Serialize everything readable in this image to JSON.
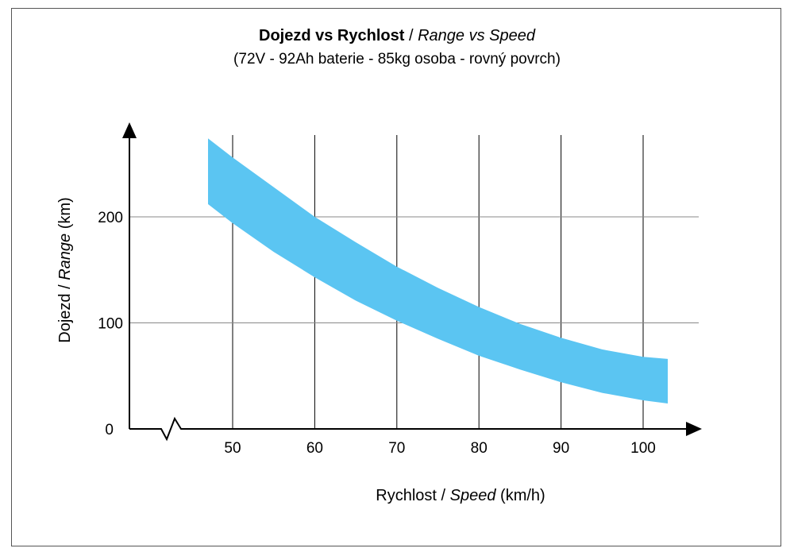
{
  "chart_data": {
    "type": "area",
    "title_bold": "Dojezd vs Rychlost",
    "title_sep": " / ",
    "title_italic": "Range vs Speed",
    "subtitle": "(72V - 92Ah baterie - 85kg osoba - rovný povrch)",
    "xlabel_main": "Rychlost",
    "xlabel_sep": " / ",
    "xlabel_italic": "Speed",
    "xlabel_unit": " (km/h)",
    "ylabel_main": "Dojezd",
    "ylabel_sep": " / ",
    "ylabel_italic": "Range",
    "ylabel_unit": " (km)",
    "x_ticks": [
      "50",
      "60",
      "70",
      "80",
      "90",
      "100"
    ],
    "y_ticks": [
      "0",
      "100",
      "200"
    ],
    "xlim": [
      37,
      107
    ],
    "ylim": [
      0,
      290
    ],
    "band_color": "#5bc5f2",
    "series": [
      {
        "name": "upper",
        "x": [
          47,
          50,
          55,
          60,
          65,
          70,
          75,
          80,
          85,
          90,
          95,
          100,
          103
        ],
        "y": [
          274,
          256,
          228,
          200,
          176,
          153,
          133,
          115,
          99,
          86,
          75,
          68,
          66
        ]
      },
      {
        "name": "lower",
        "x": [
          47,
          50,
          55,
          60,
          65,
          70,
          75,
          80,
          85,
          90,
          95,
          100,
          103
        ],
        "y": [
          212,
          194,
          167,
          143,
          121,
          102,
          85,
          69,
          56,
          44,
          34,
          27,
          24
        ]
      }
    ]
  }
}
